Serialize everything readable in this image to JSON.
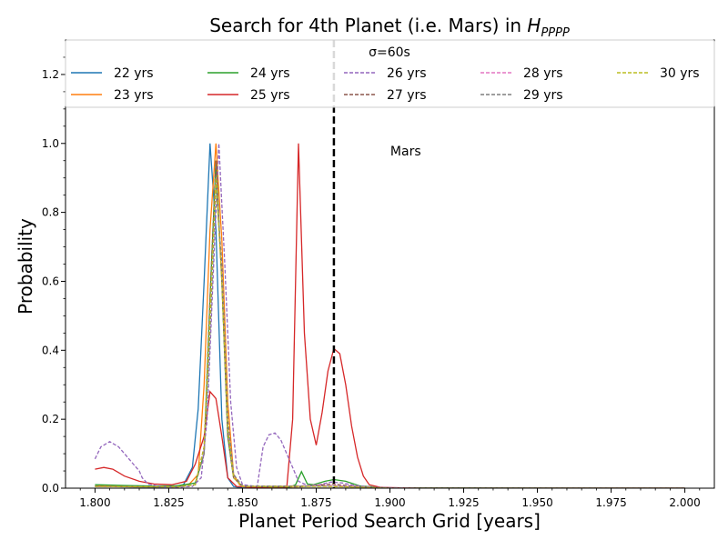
{
  "chart_data": {
    "type": "line",
    "title": {
      "prefix": "Search for 4th Planet (i.e. Mars) in ",
      "symbol": "H",
      "subscript": "PPPP"
    },
    "xlabel": "Planet Period Search Grid [years]",
    "ylabel": "Probability",
    "xlim": [
      1.79,
      2.01
    ],
    "ylim": [
      0,
      1.3
    ],
    "xticks": [
      "1.800",
      "1.825",
      "1.850",
      "1.875",
      "1.900",
      "1.925",
      "1.950",
      "1.975",
      "2.000"
    ],
    "yticks": [
      "0.0",
      "0.2",
      "0.4",
      "0.6",
      "0.8",
      "1.0",
      "1.2"
    ],
    "grid": false,
    "legend": {
      "placement": "upper center",
      "title": "σ=60s",
      "columns": 5
    },
    "vline": {
      "x": 1.881,
      "style": "dashed",
      "color": "#000000",
      "label": "Mars"
    },
    "series": [
      {
        "name": "22 yrs",
        "color": "#1f77b4",
        "dash": "solid",
        "points": [
          [
            1.8,
            0.005
          ],
          [
            1.81,
            0.004
          ],
          [
            1.82,
            0.003
          ],
          [
            1.826,
            0.004
          ],
          [
            1.83,
            0.01
          ],
          [
            1.833,
            0.06
          ],
          [
            1.835,
            0.23
          ],
          [
            1.837,
            0.6
          ],
          [
            1.839,
            1.0
          ],
          [
            1.841,
            0.75
          ],
          [
            1.843,
            0.2
          ],
          [
            1.845,
            0.03
          ],
          [
            1.847,
            0.005
          ],
          [
            1.85,
            0.001
          ],
          [
            1.87,
            0.0
          ],
          [
            1.9,
            0.0
          ],
          [
            2.0,
            0.0
          ]
        ]
      },
      {
        "name": "23 yrs",
        "color": "#ff7f0e",
        "dash": "solid",
        "points": [
          [
            1.8,
            0.006
          ],
          [
            1.81,
            0.005
          ],
          [
            1.82,
            0.004
          ],
          [
            1.828,
            0.005
          ],
          [
            1.832,
            0.012
          ],
          [
            1.835,
            0.04
          ],
          [
            1.837,
            0.3
          ],
          [
            1.839,
            0.75
          ],
          [
            1.841,
            1.0
          ],
          [
            1.843,
            0.72
          ],
          [
            1.845,
            0.25
          ],
          [
            1.847,
            0.04
          ],
          [
            1.849,
            0.01
          ],
          [
            1.852,
            0.002
          ],
          [
            1.87,
            0.0
          ],
          [
            1.9,
            0.0
          ],
          [
            2.0,
            0.0
          ]
        ]
      },
      {
        "name": "24 yrs",
        "color": "#2ca02c",
        "dash": "solid",
        "points": [
          [
            1.8,
            0.01
          ],
          [
            1.81,
            0.008
          ],
          [
            1.82,
            0.006
          ],
          [
            1.828,
            0.007
          ],
          [
            1.834,
            0.015
          ],
          [
            1.837,
            0.1
          ],
          [
            1.839,
            0.55
          ],
          [
            1.841,
            0.95
          ],
          [
            1.843,
            0.6
          ],
          [
            1.845,
            0.15
          ],
          [
            1.847,
            0.03
          ],
          [
            1.85,
            0.005
          ],
          [
            1.866,
            0.003
          ],
          [
            1.868,
            0.01
          ],
          [
            1.87,
            0.048
          ],
          [
            1.872,
            0.012
          ],
          [
            1.874,
            0.01
          ],
          [
            1.878,
            0.02
          ],
          [
            1.881,
            0.025
          ],
          [
            1.885,
            0.02
          ],
          [
            1.89,
            0.006
          ],
          [
            1.9,
            0.001
          ],
          [
            2.0,
            0.0
          ]
        ]
      },
      {
        "name": "25 yrs",
        "color": "#d62728",
        "dash": "solid",
        "points": [
          [
            1.8,
            0.055
          ],
          [
            1.803,
            0.06
          ],
          [
            1.806,
            0.055
          ],
          [
            1.81,
            0.035
          ],
          [
            1.815,
            0.02
          ],
          [
            1.82,
            0.012
          ],
          [
            1.826,
            0.01
          ],
          [
            1.831,
            0.02
          ],
          [
            1.834,
            0.07
          ],
          [
            1.837,
            0.15
          ],
          [
            1.839,
            0.28
          ],
          [
            1.841,
            0.26
          ],
          [
            1.843,
            0.15
          ],
          [
            1.845,
            0.03
          ],
          [
            1.848,
            0.005
          ],
          [
            1.86,
            0.0
          ],
          [
            1.865,
            0.001
          ],
          [
            1.867,
            0.2
          ],
          [
            1.869,
            1.0
          ],
          [
            1.871,
            0.45
          ],
          [
            1.873,
            0.2
          ],
          [
            1.875,
            0.125
          ],
          [
            1.877,
            0.22
          ],
          [
            1.879,
            0.34
          ],
          [
            1.881,
            0.405
          ],
          [
            1.883,
            0.39
          ],
          [
            1.885,
            0.3
          ],
          [
            1.887,
            0.18
          ],
          [
            1.889,
            0.09
          ],
          [
            1.891,
            0.035
          ],
          [
            1.893,
            0.01
          ],
          [
            1.897,
            0.002
          ],
          [
            1.91,
            0.0
          ],
          [
            2.0,
            0.0
          ]
        ]
      },
      {
        "name": "26 yrs",
        "color": "#9467bd",
        "dash": "dashed",
        "points": [
          [
            1.8,
            0.085
          ],
          [
            1.802,
            0.12
          ],
          [
            1.805,
            0.135
          ],
          [
            1.808,
            0.12
          ],
          [
            1.811,
            0.09
          ],
          [
            1.813,
            0.07
          ],
          [
            1.815,
            0.05
          ],
          [
            1.816,
            0.03
          ],
          [
            1.818,
            0.012
          ],
          [
            1.822,
            0.005
          ],
          [
            1.828,
            0.003
          ],
          [
            1.833,
            0.005
          ],
          [
            1.836,
            0.03
          ],
          [
            1.838,
            0.2
          ],
          [
            1.84,
            0.6
          ],
          [
            1.842,
            1.0
          ],
          [
            1.844,
            0.65
          ],
          [
            1.846,
            0.25
          ],
          [
            1.848,
            0.06
          ],
          [
            1.85,
            0.01
          ],
          [
            1.855,
            0.005
          ],
          [
            1.857,
            0.12
          ],
          [
            1.859,
            0.155
          ],
          [
            1.861,
            0.16
          ],
          [
            1.863,
            0.14
          ],
          [
            1.865,
            0.1
          ],
          [
            1.867,
            0.06
          ],
          [
            1.869,
            0.02
          ],
          [
            1.872,
            0.008
          ],
          [
            1.876,
            0.01
          ],
          [
            1.88,
            0.018
          ],
          [
            1.884,
            0.015
          ],
          [
            1.888,
            0.008
          ],
          [
            1.895,
            0.002
          ],
          [
            1.91,
            0.0
          ],
          [
            2.0,
            0.0
          ]
        ]
      },
      {
        "name": "27 yrs",
        "color": "#8c564b",
        "dash": "dashed",
        "points": [
          [
            1.8,
            0.006
          ],
          [
            1.815,
            0.004
          ],
          [
            1.828,
            0.004
          ],
          [
            1.834,
            0.01
          ],
          [
            1.837,
            0.12
          ],
          [
            1.839,
            0.55
          ],
          [
            1.841,
            0.95
          ],
          [
            1.843,
            0.6
          ],
          [
            1.845,
            0.15
          ],
          [
            1.847,
            0.03
          ],
          [
            1.85,
            0.005
          ],
          [
            1.87,
            0.004
          ],
          [
            1.88,
            0.012
          ],
          [
            1.89,
            0.004
          ],
          [
            1.9,
            0.0
          ],
          [
            2.0,
            0.0
          ]
        ]
      },
      {
        "name": "28 yrs",
        "color": "#e377c2",
        "dash": "dashed",
        "points": [
          [
            1.8,
            0.005
          ],
          [
            1.815,
            0.004
          ],
          [
            1.828,
            0.004
          ],
          [
            1.834,
            0.01
          ],
          [
            1.837,
            0.1
          ],
          [
            1.839,
            0.5
          ],
          [
            1.841,
            0.9
          ],
          [
            1.843,
            0.62
          ],
          [
            1.845,
            0.18
          ],
          [
            1.847,
            0.03
          ],
          [
            1.85,
            0.005
          ],
          [
            1.88,
            0.008
          ],
          [
            1.9,
            0.0
          ],
          [
            2.0,
            0.0
          ]
        ]
      },
      {
        "name": "29 yrs",
        "color": "#7f7f7f",
        "dash": "dashed",
        "points": [
          [
            1.8,
            0.005
          ],
          [
            1.815,
            0.004
          ],
          [
            1.828,
            0.004
          ],
          [
            1.834,
            0.01
          ],
          [
            1.837,
            0.1
          ],
          [
            1.839,
            0.45
          ],
          [
            1.841,
            0.88
          ],
          [
            1.843,
            0.65
          ],
          [
            1.845,
            0.2
          ],
          [
            1.847,
            0.04
          ],
          [
            1.85,
            0.006
          ],
          [
            1.88,
            0.006
          ],
          [
            1.9,
            0.0
          ],
          [
            2.0,
            0.0
          ]
        ]
      },
      {
        "name": "30 yrs",
        "color": "#bcbd22",
        "dash": "dashed",
        "points": [
          [
            1.8,
            0.005
          ],
          [
            1.815,
            0.004
          ],
          [
            1.828,
            0.004
          ],
          [
            1.834,
            0.01
          ],
          [
            1.837,
            0.12
          ],
          [
            1.839,
            0.5
          ],
          [
            1.841,
            0.9
          ],
          [
            1.843,
            0.6
          ],
          [
            1.845,
            0.17
          ],
          [
            1.847,
            0.03
          ],
          [
            1.85,
            0.005
          ],
          [
            1.88,
            0.005
          ],
          [
            1.9,
            0.0
          ],
          [
            2.0,
            0.0
          ]
        ]
      }
    ]
  }
}
